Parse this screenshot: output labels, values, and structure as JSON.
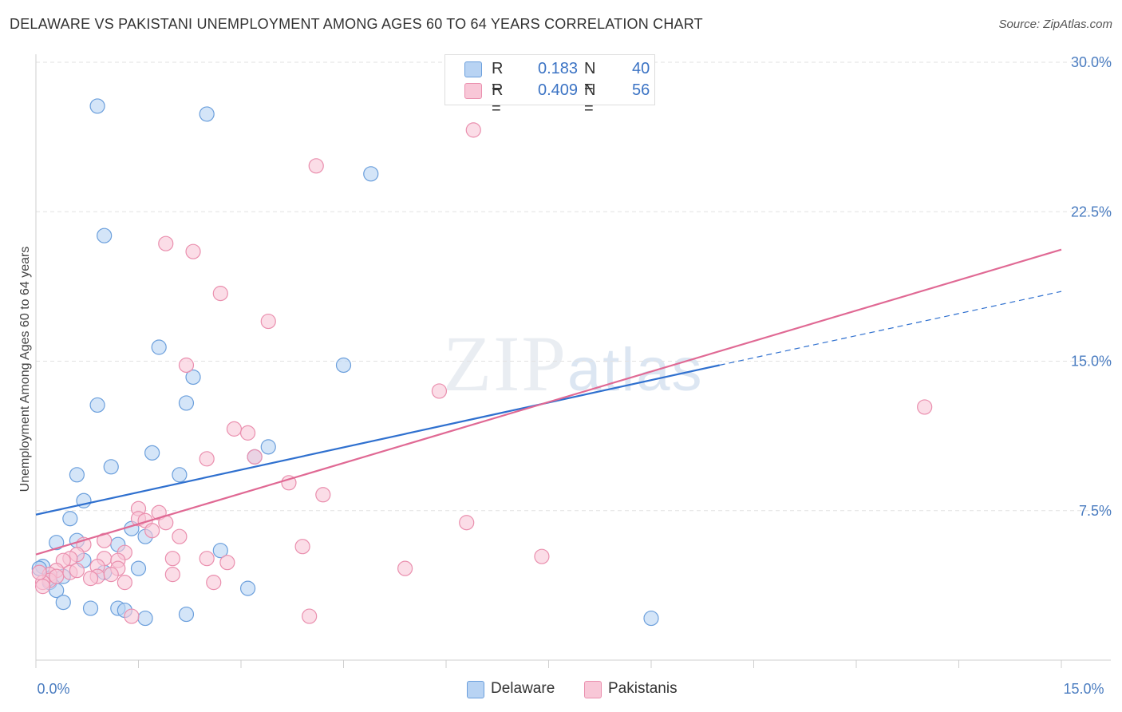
{
  "header": {
    "title": "DELAWARE VS PAKISTANI UNEMPLOYMENT AMONG AGES 60 TO 64 YEARS CORRELATION CHART",
    "source": "Source: ZipAtlas.com"
  },
  "watermark": {
    "zip": "ZIP",
    "atlas": "atlas"
  },
  "legend": {
    "rows": [
      {
        "r_label": "R =",
        "r_value": "0.183",
        "n_label": "N =",
        "n_value": "40"
      },
      {
        "r_label": "R =",
        "r_value": "0.409",
        "n_label": "N =",
        "n_value": "56"
      }
    ]
  },
  "bottom_legend": {
    "delaware": "Delaware",
    "pakistanis": "Pakistanis"
  },
  "colors": {
    "delaware_fill": "#b8d3f3",
    "delaware_stroke": "#6b9fdc",
    "delaware_line": "#2f70cf",
    "pakistani_fill": "#f8c7d7",
    "pakistani_stroke": "#ea8fae",
    "pakistani_line": "#e06994",
    "tick_label": "#4a7cc0",
    "grid": "#e2e2e2"
  },
  "chart_data": {
    "type": "scatter",
    "title": "DELAWARE VS PAKISTANI UNEMPLOYMENT AMONG AGES 60 TO 64 YEARS CORRELATION CHART",
    "xlabel": "",
    "ylabel": "Unemployment Among Ages 60 to 64 years",
    "xlim": [
      0,
      15
    ],
    "ylim": [
      0,
      30
    ],
    "x_tick_labels": [
      {
        "value": 0,
        "label": "0.0%"
      },
      {
        "value": 15,
        "label": "15.0%"
      }
    ],
    "y_tick_labels": [
      {
        "value": 7.5,
        "label": "7.5%"
      },
      {
        "value": 15,
        "label": "15.0%"
      },
      {
        "value": 22.5,
        "label": "22.5%"
      },
      {
        "value": 30,
        "label": "30.0%"
      }
    ],
    "grid": true,
    "legend_position": "top-center",
    "series": [
      {
        "name": "Delaware",
        "r": 0.183,
        "n": 40,
        "trend": {
          "x": [
            0,
            10
          ],
          "y": [
            7.3,
            14.8
          ]
        },
        "trend_extension": {
          "x": [
            10,
            15
          ],
          "y": [
            14.8,
            18.5
          ]
        },
        "points": [
          [
            0.9,
            27.8
          ],
          [
            2.5,
            27.4
          ],
          [
            4.9,
            24.4
          ],
          [
            1.0,
            21.3
          ],
          [
            1.8,
            15.7
          ],
          [
            4.5,
            14.8
          ],
          [
            2.3,
            14.2
          ],
          [
            2.2,
            12.9
          ],
          [
            0.9,
            12.8
          ],
          [
            3.4,
            10.7
          ],
          [
            1.7,
            10.4
          ],
          [
            3.2,
            10.2
          ],
          [
            0.6,
            9.3
          ],
          [
            1.1,
            9.7
          ],
          [
            2.1,
            9.3
          ],
          [
            0.7,
            8.0
          ],
          [
            0.5,
            7.1
          ],
          [
            1.4,
            6.6
          ],
          [
            1.6,
            6.2
          ],
          [
            0.3,
            5.9
          ],
          [
            0.6,
            6.0
          ],
          [
            1.2,
            5.8
          ],
          [
            2.7,
            5.5
          ],
          [
            0.7,
            5.0
          ],
          [
            0.1,
            4.7
          ],
          [
            1.5,
            4.6
          ],
          [
            1.0,
            4.4
          ],
          [
            0.4,
            4.2
          ],
          [
            0.2,
            4.1
          ],
          [
            0.2,
            3.9
          ],
          [
            0.3,
            3.5
          ],
          [
            0.4,
            2.9
          ],
          [
            3.1,
            3.6
          ],
          [
            0.8,
            2.6
          ],
          [
            1.2,
            2.6
          ],
          [
            1.3,
            2.5
          ],
          [
            1.6,
            2.1
          ],
          [
            2.2,
            2.3
          ],
          [
            9.0,
            2.1
          ],
          [
            0.05,
            4.6
          ]
        ]
      },
      {
        "name": "Pakistanis",
        "r": 0.409,
        "n": 56,
        "trend": {
          "x": [
            0,
            15
          ],
          "y": [
            5.3,
            20.6
          ]
        },
        "points": [
          [
            6.4,
            26.6
          ],
          [
            4.1,
            24.8
          ],
          [
            1.9,
            20.9
          ],
          [
            2.3,
            20.5
          ],
          [
            2.7,
            18.4
          ],
          [
            3.4,
            17.0
          ],
          [
            2.2,
            14.8
          ],
          [
            5.9,
            13.5
          ],
          [
            13.0,
            12.7
          ],
          [
            2.9,
            11.6
          ],
          [
            3.1,
            11.4
          ],
          [
            2.5,
            10.1
          ],
          [
            3.2,
            10.2
          ],
          [
            3.7,
            8.9
          ],
          [
            4.2,
            8.3
          ],
          [
            1.5,
            7.6
          ],
          [
            1.8,
            7.4
          ],
          [
            1.5,
            7.1
          ],
          [
            1.6,
            7.0
          ],
          [
            1.9,
            6.9
          ],
          [
            1.7,
            6.5
          ],
          [
            2.1,
            6.2
          ],
          [
            6.3,
            6.9
          ],
          [
            1.0,
            6.0
          ],
          [
            0.7,
            5.8
          ],
          [
            3.9,
            5.7
          ],
          [
            7.4,
            5.2
          ],
          [
            1.3,
            5.4
          ],
          [
            0.6,
            5.3
          ],
          [
            0.5,
            5.1
          ],
          [
            0.4,
            5.0
          ],
          [
            1.0,
            5.1
          ],
          [
            1.2,
            5.0
          ],
          [
            2.0,
            5.1
          ],
          [
            2.5,
            5.1
          ],
          [
            2.8,
            4.9
          ],
          [
            0.9,
            4.7
          ],
          [
            1.2,
            4.6
          ],
          [
            0.3,
            4.5
          ],
          [
            0.5,
            4.4
          ],
          [
            5.4,
            4.6
          ],
          [
            0.2,
            4.3
          ],
          [
            0.9,
            4.2
          ],
          [
            0.2,
            4.0
          ],
          [
            2.0,
            4.3
          ],
          [
            0.1,
            3.9
          ],
          [
            0.3,
            4.2
          ],
          [
            1.3,
            3.9
          ],
          [
            2.6,
            3.9
          ],
          [
            0.1,
            3.7
          ],
          [
            1.4,
            2.2
          ],
          [
            4.0,
            2.2
          ],
          [
            0.05,
            4.4
          ],
          [
            0.6,
            4.5
          ],
          [
            0.8,
            4.1
          ],
          [
            1.1,
            4.3
          ]
        ]
      }
    ]
  }
}
